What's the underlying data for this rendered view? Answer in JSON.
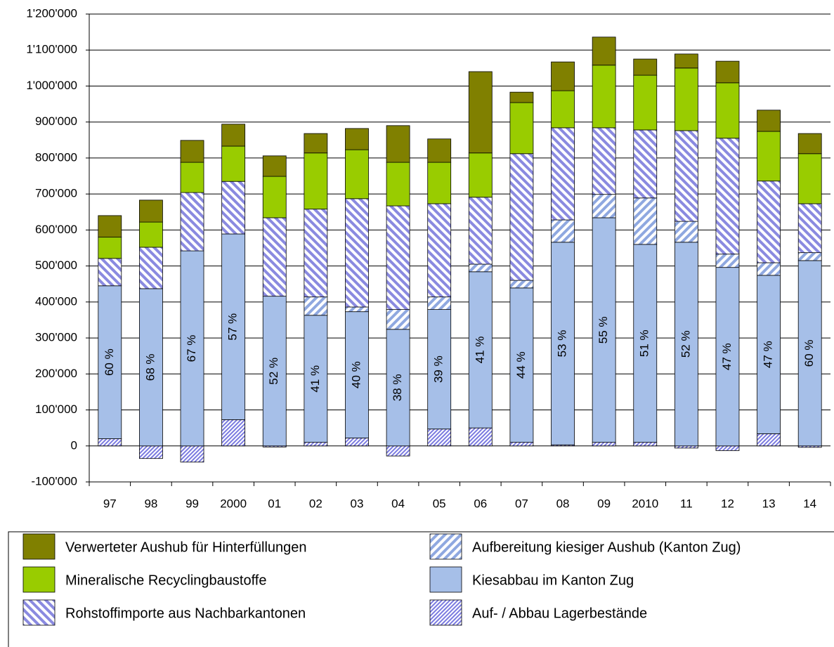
{
  "chart_data": {
    "type": "stacked_bar",
    "categories": [
      "97",
      "98",
      "99",
      "2000",
      "01",
      "02",
      "03",
      "04",
      "05",
      "06",
      "07",
      "08",
      "09",
      "2010",
      "11",
      "12",
      "13",
      "14"
    ],
    "series": [
      {
        "name": "Auf- / Abbau Lagerbestände",
        "color": "#7b7be0",
        "pattern": "fine-slash",
        "values": [
          20000,
          -35000,
          -45000,
          73000,
          -3000,
          10000,
          22000,
          -28000,
          47000,
          50000,
          10000,
          3000,
          10000,
          10000,
          -6000,
          -13000,
          34000,
          -4000
        ]
      },
      {
        "name": "Kiesabbau im Kanton Zug",
        "color": "#a6bfe8",
        "pattern": "solid",
        "values": [
          425000,
          437000,
          542000,
          516000,
          416000,
          353000,
          351000,
          324000,
          332000,
          434000,
          429000,
          563000,
          624000,
          550000,
          566000,
          496000,
          440000,
          515000
        ]
      },
      {
        "name": "Aufbereitung kiesiger Aushub (Kanton Zug)",
        "color": "#8fa8e0",
        "pattern": "slash",
        "values": [
          0,
          0,
          0,
          0,
          0,
          51000,
          13000,
          55000,
          35000,
          21000,
          21000,
          62000,
          65000,
          129000,
          58000,
          37000,
          35000,
          22000
        ]
      },
      {
        "name": "Rohstoffimporte aus Nachbarkantonen",
        "color": "#8a8ae0",
        "pattern": "backslash",
        "values": [
          76000,
          115000,
          162000,
          146000,
          218000,
          244000,
          301000,
          288000,
          259000,
          186000,
          352000,
          256000,
          185000,
          189000,
          252000,
          322000,
          227000,
          136000
        ]
      },
      {
        "name": "Mineralische Recyclingbaustoffe",
        "color": "#99cc00",
        "pattern": "solid",
        "values": [
          59000,
          70000,
          84000,
          98000,
          115000,
          156000,
          136000,
          121000,
          115000,
          123000,
          142000,
          103000,
          174000,
          152000,
          174000,
          154000,
          138000,
          139000
        ]
      },
      {
        "name": "Verwerteter Aushub für Hinterfüllungen",
        "color": "#808000",
        "pattern": "solid",
        "values": [
          60000,
          61000,
          61000,
          61000,
          57000,
          54000,
          59000,
          102000,
          65000,
          226000,
          29000,
          80000,
          78000,
          45000,
          39000,
          60000,
          59000,
          56000
        ]
      }
    ],
    "bar_labels": [
      "60 %",
      "68 %",
      "67 %",
      "57 %",
      "52 %",
      "41 %",
      "40 %",
      "38 %",
      "39 %",
      "41 %",
      "44 %",
      "53 %",
      "55 %",
      "51 %",
      "52 %",
      "47 %",
      "47 %",
      "60 %"
    ],
    "ylim": [
      -100000,
      1200000
    ],
    "yticks": [
      {
        "value": -100000,
        "label": "-100'000"
      },
      0,
      {
        "value": 100000,
        "label": "100'000"
      },
      {
        "value": 200000,
        "label": "200'000"
      },
      {
        "value": 300000,
        "label": "300'000"
      },
      {
        "value": 400000,
        "label": "400'000"
      },
      {
        "value": 500000,
        "label": "500'000"
      },
      {
        "value": 600000,
        "label": "600'000"
      },
      {
        "value": 700000,
        "label": "700'000"
      },
      {
        "value": 800000,
        "label": "800'000"
      },
      {
        "value": 900000,
        "label": "900'000"
      },
      {
        "value": 1000000,
        "label": "1'000'000"
      },
      {
        "value": 1100000,
        "label": "1'100'000"
      },
      {
        "value": 1200000,
        "label": "1'200'000"
      }
    ],
    "grid": true
  }
}
